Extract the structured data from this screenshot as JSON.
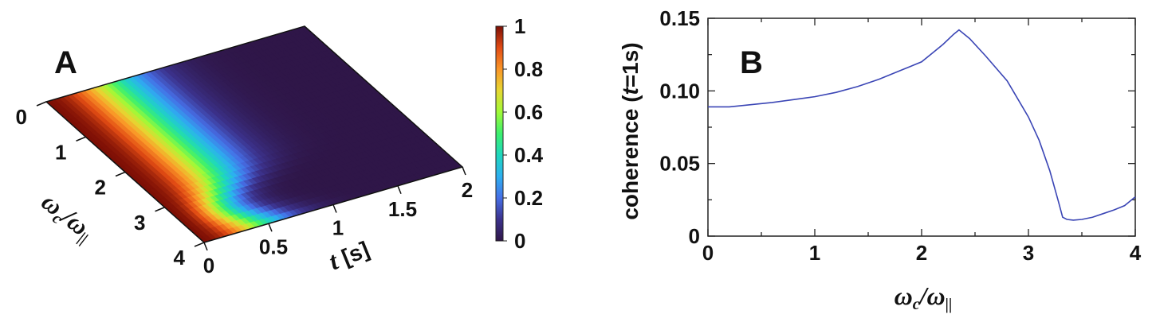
{
  "chart_data": [
    {
      "panel": "A",
      "type": "heatmap",
      "x_axis": {
        "label_parts": [
          "t",
          " [s]"
        ],
        "ticks": [
          "0",
          "0.5",
          "1",
          "1.5",
          "2"
        ],
        "range": [
          0,
          2
        ]
      },
      "y_axis": {
        "label_parts": [
          "ω",
          "c",
          "/",
          "ω",
          "||"
        ],
        "ticks": [
          "0",
          "1",
          "2",
          "3",
          "4"
        ],
        "range": [
          0,
          4
        ]
      },
      "colorbar": {
        "range": [
          0,
          1
        ],
        "ticks": [
          "0",
          "0.2",
          "0.4",
          "0.6",
          "0.8",
          "1"
        ],
        "colormap": "turbo"
      },
      "surface_notes": "value decays from 1 at t=0 toward 0; decay is fastest near ωc/ω|| ≈ 3.3–3.5"
    },
    {
      "panel": "B",
      "type": "line",
      "xlabel_parts": [
        "ω",
        "c",
        "/",
        "ω",
        "||"
      ],
      "ylabel_parts": [
        "coherence (",
        "t",
        "=1s)"
      ],
      "xlim": [
        0,
        4
      ],
      "ylim": [
        0,
        0.15
      ],
      "x_ticks": [
        "0",
        "1",
        "2",
        "3",
        "4"
      ],
      "y_ticks": [
        "0",
        "0.05",
        "0.10",
        "0.15"
      ],
      "series": [
        {
          "color": "#3a45b5",
          "x": [
            0,
            0.2,
            0.4,
            0.6,
            0.8,
            1.0,
            1.2,
            1.4,
            1.6,
            1.8,
            2.0,
            2.1,
            2.2,
            2.3,
            2.35,
            2.45,
            2.6,
            2.8,
            3.0,
            3.1,
            3.2,
            3.28,
            3.32,
            3.36,
            3.42,
            3.5,
            3.6,
            3.7,
            3.8,
            3.9,
            4.0
          ],
          "y": [
            0.089,
            0.089,
            0.0905,
            0.092,
            0.094,
            0.096,
            0.099,
            0.103,
            0.108,
            0.114,
            0.12,
            0.126,
            0.132,
            0.139,
            0.142,
            0.136,
            0.124,
            0.107,
            0.082,
            0.066,
            0.045,
            0.024,
            0.013,
            0.0115,
            0.011,
            0.0115,
            0.013,
            0.0155,
            0.018,
            0.021,
            0.027
          ]
        }
      ]
    }
  ]
}
